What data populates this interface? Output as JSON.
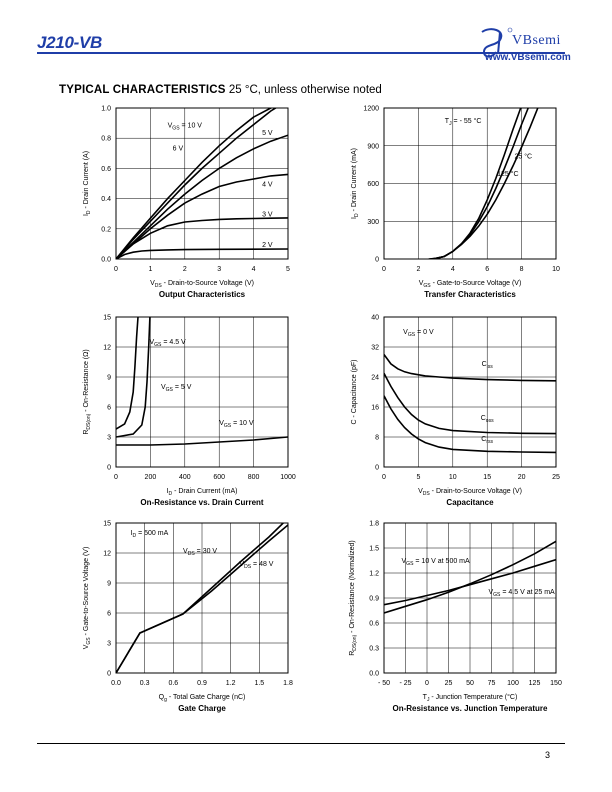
{
  "header": {
    "part_number": "J210-VB",
    "brand": "VBsemi",
    "url": "www.VBsemi.com",
    "page_number": "3"
  },
  "section": {
    "title": "TYPICAL CHARACTERISTICS",
    "subtitle": "25 °C, unless otherwise noted"
  },
  "chart_data": [
    {
      "id": "output",
      "type": "line",
      "title": "Output Characteristics",
      "xlabel": "V_DS - Drain-to-Source Voltage (V)",
      "ylabel": "I_D - Drain Current (A)",
      "xlim": [
        0,
        5
      ],
      "ylim": [
        0,
        1.0
      ],
      "xticks": [
        "0",
        "1",
        "2",
        "3",
        "4",
        "5"
      ],
      "yticks": [
        "0.0",
        "0.2",
        "0.4",
        "0.6",
        "0.8",
        "1.0"
      ],
      "grid": true,
      "series": [
        {
          "name": "V_GS = 10 V",
          "x": [
            0,
            0.5,
            1,
            1.5,
            2,
            2.5,
            3,
            3.5,
            4,
            4.5,
            5
          ],
          "y": [
            0,
            0.14,
            0.27,
            0.4,
            0.52,
            0.64,
            0.75,
            0.85,
            0.94,
            1.0,
            1.06
          ]
        },
        {
          "name": "6 V",
          "x": [
            0,
            0.5,
            1,
            1.5,
            2,
            2.5,
            3,
            3.5,
            4,
            4.5,
            5
          ],
          "y": [
            0,
            0.13,
            0.25,
            0.37,
            0.49,
            0.6,
            0.7,
            0.8,
            0.89,
            0.98,
            1.05
          ]
        },
        {
          "name": "5 V",
          "x": [
            0,
            0.5,
            1,
            1.5,
            2,
            2.5,
            3,
            3.5,
            4,
            4.5,
            5
          ],
          "y": [
            0,
            0.11,
            0.22,
            0.33,
            0.43,
            0.52,
            0.6,
            0.67,
            0.73,
            0.78,
            0.82
          ]
        },
        {
          "name": "4 V",
          "x": [
            0,
            0.5,
            1,
            1.5,
            2,
            2.5,
            3,
            3.5,
            4,
            4.5,
            5
          ],
          "y": [
            0,
            0.1,
            0.2,
            0.29,
            0.37,
            0.43,
            0.48,
            0.51,
            0.53,
            0.55,
            0.56
          ]
        },
        {
          "name": "3 V",
          "x": [
            0,
            0.5,
            1,
            1.5,
            2,
            2.5,
            3,
            3.5,
            4,
            4.5,
            5
          ],
          "y": [
            0,
            0.1,
            0.17,
            0.22,
            0.245,
            0.255,
            0.262,
            0.266,
            0.268,
            0.27,
            0.272
          ]
        },
        {
          "name": "2 V",
          "x": [
            0,
            0.25,
            0.5,
            0.75,
            1,
            1.5,
            2,
            3,
            4,
            5
          ],
          "y": [
            0,
            0.03,
            0.045,
            0.053,
            0.057,
            0.06,
            0.062,
            0.064,
            0.065,
            0.066
          ]
        }
      ],
      "labels": [
        {
          "text": "V_GS = 10 V",
          "x": 2.0,
          "y": 0.87
        },
        {
          "text": "6 V",
          "x": 1.8,
          "y": 0.72
        },
        {
          "text": "5 V",
          "x": 4.4,
          "y": 0.82
        },
        {
          "text": "4 V",
          "x": 4.4,
          "y": 0.48
        },
        {
          "text": "3 V",
          "x": 4.4,
          "y": 0.28
        },
        {
          "text": "2 V",
          "x": 4.4,
          "y": 0.08
        }
      ]
    },
    {
      "id": "transfer",
      "type": "line",
      "title": "Transfer Characteristics",
      "xlabel": "V_GS - Gate-to-Source Voltage (V)",
      "ylabel": "I_D - Drain Current (mA)",
      "xlim": [
        0,
        10
      ],
      "ylim": [
        0,
        1200
      ],
      "xticks": [
        "0",
        "2",
        "4",
        "6",
        "8",
        "10"
      ],
      "yticks": [
        "0",
        "300",
        "600",
        "900",
        "1200"
      ],
      "grid": true,
      "series": [
        {
          "name": "T_J = - 55 °C",
          "x": [
            2.6,
            3,
            3.5,
            4,
            4.5,
            5,
            5.5,
            6,
            6.5,
            7,
            7.5,
            8
          ],
          "y": [
            0,
            5,
            20,
            60,
            120,
            205,
            320,
            470,
            640,
            830,
            1030,
            1220
          ]
        },
        {
          "name": "25 °C",
          "x": [
            2.7,
            3,
            3.5,
            4,
            4.5,
            5,
            5.5,
            6,
            6.5,
            7,
            7.5,
            8,
            8.5
          ],
          "y": [
            0,
            5,
            20,
            60,
            120,
            195,
            295,
            415,
            560,
            720,
            890,
            1070,
            1240
          ]
        },
        {
          "name": "125 °C",
          "x": [
            2.8,
            3,
            3.5,
            4,
            4.5,
            5,
            5.5,
            6,
            6.5,
            7,
            7.5,
            8,
            8.5,
            9
          ],
          "y": [
            0,
            5,
            20,
            60,
            115,
            180,
            260,
            355,
            470,
            600,
            740,
            890,
            1050,
            1220
          ]
        }
      ],
      "labels": [
        {
          "text": "T_J = - 55 °C",
          "x": 4.6,
          "y": 1080
        },
        {
          "text": "25 °C",
          "x": 8.1,
          "y": 800
        },
        {
          "text": "125 °C",
          "x": 7.2,
          "y": 660
        }
      ]
    },
    {
      "id": "onres",
      "type": "line",
      "title": "On-Resistance vs. Drain Current",
      "xlabel": "I_D - Drain Current (mA)",
      "ylabel": "R_DS(on) - On-Resistance (Ω)",
      "xlim": [
        0,
        1000
      ],
      "ylim": [
        0,
        15
      ],
      "xticks": [
        "0",
        "200",
        "400",
        "600",
        "800",
        "1000"
      ],
      "yticks": [
        "0",
        "3",
        "6",
        "9",
        "12",
        "15"
      ],
      "grid": true,
      "series": [
        {
          "name": "V_GS = 4.5 V",
          "x": [
            0,
            50,
            80,
            100,
            110,
            120,
            128
          ],
          "y": [
            3.8,
            4.3,
            5.5,
            7.5,
            10,
            13,
            15
          ]
        },
        {
          "name": "V_GS = 5 V",
          "x": [
            0,
            100,
            150,
            170,
            180,
            190,
            197
          ],
          "y": [
            3.0,
            3.3,
            4.2,
            6,
            8.5,
            12,
            15
          ]
        },
        {
          "name": "V_GS = 10 V",
          "x": [
            0,
            200,
            400,
            600,
            800,
            1000
          ],
          "y": [
            2.2,
            2.2,
            2.3,
            2.5,
            2.7,
            3.0
          ]
        }
      ],
      "labels": [
        {
          "text": "V_GS = 4.5 V",
          "x": 300,
          "y": 12.3
        },
        {
          "text": "V_GS = 5 V",
          "x": 350,
          "y": 7.8
        },
        {
          "text": "V_GS = 10 V",
          "x": 700,
          "y": 4.2
        }
      ]
    },
    {
      "id": "capacitance",
      "type": "line",
      "title": "Capacitance",
      "xlabel": "V_DS - Drain-to-Source Voltage (V)",
      "ylabel": "C - Capacitance (pF)",
      "xlim": [
        0,
        25
      ],
      "ylim": [
        0,
        40
      ],
      "xticks": [
        "0",
        "5",
        "10",
        "15",
        "20",
        "25"
      ],
      "yticks": [
        "0",
        "8",
        "16",
        "24",
        "32",
        "40"
      ],
      "grid": true,
      "series": [
        {
          "name": "C_iss",
          "x": [
            0,
            1,
            2,
            3,
            4,
            6,
            8,
            10,
            15,
            20,
            25
          ],
          "y": [
            30,
            27.5,
            26.2,
            25.4,
            24.9,
            24.3,
            24.0,
            23.7,
            23.3,
            23.1,
            23.0
          ]
        },
        {
          "name": "C_oss",
          "x": [
            0,
            1,
            2,
            3,
            4,
            5,
            6,
            8,
            10,
            15,
            20,
            25
          ],
          "y": [
            25,
            21.5,
            18.5,
            16,
            14,
            12.5,
            11.5,
            10.3,
            9.7,
            9.2,
            9.0,
            8.9
          ]
        },
        {
          "name": "C_rss",
          "x": [
            0,
            1,
            2,
            3,
            4,
            5,
            6,
            8,
            10,
            15,
            20,
            25
          ],
          "y": [
            19,
            15.5,
            12.7,
            10.5,
            8.8,
            7.5,
            6.5,
            5.3,
            4.7,
            4.2,
            4.0,
            3.9
          ]
        }
      ],
      "labels": [
        {
          "text": "V_GS = 0 V",
          "x": 5,
          "y": 35.5
        },
        {
          "text": "C_iss",
          "x": 15,
          "y": 27
        },
        {
          "text": "C_oss",
          "x": 15,
          "y": 12.5
        },
        {
          "text": "C_rss",
          "x": 15,
          "y": 7
        }
      ]
    },
    {
      "id": "gatecharge",
      "type": "line",
      "title": "Gate Charge",
      "xlabel": "Q_g - Total Gate Charge (nC)",
      "ylabel": "V_GS - Gate-to-Source Voltage (V)",
      "xlim": [
        0,
        1.8
      ],
      "ylim": [
        0,
        15
      ],
      "xticks": [
        "0.0",
        "0.3",
        "0.6",
        "0.9",
        "1.2",
        "1.5",
        "1.8"
      ],
      "yticks": [
        "0",
        "3",
        "6",
        "9",
        "12",
        "15"
      ],
      "grid": true,
      "series": [
        {
          "name": "V_DS = 30 V",
          "x": [
            0,
            0.25,
            0.7,
            1.0,
            1.3,
            1.6,
            1.75
          ],
          "y": [
            0,
            4,
            5.9,
            8.5,
            11.1,
            13.6,
            15
          ]
        },
        {
          "name": "V_DS = 48 V",
          "x": [
            0,
            0.25,
            0.7,
            1.0,
            1.3,
            1.6,
            1.8
          ],
          "y": [
            0,
            4,
            5.9,
            8.2,
            10.7,
            13.2,
            14.8
          ]
        }
      ],
      "labels": [
        {
          "text": "I_D = 500 mA",
          "x": 0.35,
          "y": 13.8
        },
        {
          "text": "V_DS = 30 V",
          "x": 0.88,
          "y": 12.0
        },
        {
          "text": "V_DS = 48 V",
          "x": 1.47,
          "y": 10.7
        }
      ]
    },
    {
      "id": "onres_temp",
      "type": "line",
      "title": "On-Resistance vs. Junction Temperature",
      "xlabel": "T_J - Junction Temperature (°C)",
      "ylabel": "R_DS(on) - On-Resistance (Normalized)",
      "xlim": [
        -50,
        150
      ],
      "ylim": [
        0,
        1.8
      ],
      "xticks": [
        "- 50",
        "- 25",
        "0",
        "25",
        "50",
        "75",
        "100",
        "125",
        "150"
      ],
      "yticks": [
        "0.0",
        "0.3",
        "0.6",
        "0.9",
        "1.2",
        "1.5",
        "1.8"
      ],
      "grid": true,
      "series": [
        {
          "name": "V_GS = 10 V at 500 mA",
          "x": [
            -50,
            -25,
            0,
            25,
            50,
            75,
            100,
            125,
            150
          ],
          "y": [
            0.72,
            0.8,
            0.88,
            0.97,
            1.07,
            1.18,
            1.3,
            1.43,
            1.58
          ]
        },
        {
          "name": "V_GS = 4.5 V at 25 mA",
          "x": [
            -50,
            -25,
            0,
            25,
            50,
            75,
            100,
            125,
            150
          ],
          "y": [
            0.82,
            0.87,
            0.93,
            0.99,
            1.06,
            1.13,
            1.2,
            1.28,
            1.36
          ]
        }
      ],
      "labels": [
        {
          "text": "V_GS = 10 V at 500 mA",
          "x": 10,
          "y": 1.32
        },
        {
          "text": "V_GS = 4.5 V at 25 mA",
          "x": 110,
          "y": 0.95
        }
      ]
    }
  ]
}
